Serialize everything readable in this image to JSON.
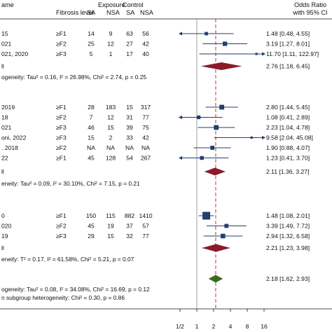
{
  "chart_data": {
    "type": "forest",
    "columns": {
      "study": "ame",
      "fibrosis": "Fibrosis level",
      "exposure": "Exposure",
      "control": "Control",
      "sa": "SA",
      "nsa": "NSA",
      "or_line1": "Odds Ratio",
      "or_line2": "with 95% CI"
    },
    "axis": {
      "scale": "log2",
      "xlim": [
        0.5,
        16
      ],
      "ticks": [
        0.5,
        1,
        2,
        4,
        8,
        16
      ],
      "tick_labels": [
        "1/2",
        "1",
        "2",
        "4",
        "8",
        "16"
      ],
      "null_value": 1,
      "overall_value": 2.18
    },
    "groups": [
      {
        "rows": [
          {
            "study": "15",
            "fib": "≥F1",
            "e_sa": "14",
            "e_nsa": "9",
            "c_sa": "63",
            "c_nsa": "56",
            "or": 1.48,
            "lo": 0.48,
            "hi": 4.55,
            "ci_text": "1.48 [0.48, 4.55]",
            "arrow_left": true,
            "arrow_right": false
          },
          {
            "study": "021",
            "fib": "≥F2",
            "e_sa": "25",
            "e_nsa": "12",
            "c_sa": "27",
            "c_nsa": "42",
            "or": 3.19,
            "lo": 1.27,
            "hi": 8.01,
            "ci_text": "3.19 [1.27, 8.01]",
            "arrow_left": false,
            "arrow_right": false
          },
          {
            "study": "021, 2020",
            "fib": "≥F3",
            "e_sa": "5",
            "e_nsa": "1",
            "c_sa": "17",
            "c_nsa": "40",
            "or": 11.7,
            "lo": 1.11,
            "hi": 122.97,
            "ci_text": "11.70 [1.11, 122.97]",
            "arrow_left": false,
            "arrow_right": true
          }
        ],
        "summary_label": "ll",
        "summary": {
          "or": 2.76,
          "lo": 1.18,
          "hi": 6.45,
          "ci_text": "2.76 [1.18, 6.45]"
        },
        "heterogeneity": "ogeneity: Tau² = 0.16, I² = 26.98%, Chi² = 2.74, p = 0.25"
      },
      {
        "rows": [
          {
            "study": "2019",
            "fib": "≥F1",
            "e_sa": "28",
            "e_nsa": "183",
            "c_sa": "15",
            "c_nsa": "317",
            "or": 2.8,
            "lo": 1.44,
            "hi": 5.45,
            "ci_text": "2.80 [1.44, 5.45]",
            "arrow_left": false,
            "arrow_right": false
          },
          {
            "study": "18",
            "fib": "≥F2",
            "e_sa": "7",
            "e_nsa": "12",
            "c_sa": "31",
            "c_nsa": "77",
            "or": 1.08,
            "lo": 0.41,
            "hi": 2.89,
            "ci_text": "1.08 [0.41, 2.89]",
            "arrow_left": true,
            "arrow_right": false
          },
          {
            "study": "021",
            "fib": "≥F3",
            "e_sa": "46",
            "e_nsa": "15",
            "c_sa": "39",
            "c_nsa": "75",
            "or": 2.23,
            "lo": 1.04,
            "hi": 4.78,
            "ci_text": "2.23 [1.04, 4.78]",
            "arrow_left": false,
            "arrow_right": false
          },
          {
            "study": "oni, 2022",
            "fib": "≥F3",
            "e_sa": "15",
            "e_nsa": "2",
            "c_sa": "33",
            "c_nsa": "42",
            "or": 9.58,
            "lo": 2.04,
            "hi": 45.08,
            "ci_text": "9.58 [2.04, 45.08]",
            "arrow_left": false,
            "arrow_right": true
          },
          {
            "study": ". 2018",
            "fib": "≥F2",
            "e_sa": "NA",
            "e_nsa": "NA",
            "c_sa": "NA",
            "c_nsa": "NA",
            "or": 1.9,
            "lo": 0.88,
            "hi": 4.07,
            "ci_text": "1.90 [0.88, 4.07]",
            "arrow_left": false,
            "arrow_right": false
          },
          {
            "study": "22",
            "fib": "≥F1",
            "e_sa": "45",
            "e_nsa": "128",
            "c_sa": "54",
            "c_nsa": "267",
            "or": 1.23,
            "lo": 0.41,
            "hi": 3.7,
            "ci_text": "1.23 [0.41, 3.70]",
            "arrow_left": true,
            "arrow_right": false
          }
        ],
        "summary_label": "ll",
        "summary": {
          "or": 2.11,
          "lo": 1.36,
          "hi": 3.27,
          "ci_text": "2.11 [1.36, 3.27]"
        },
        "heterogeneity": "eneity: Tau² = 0.09, I² = 30.10%, Chi² = 7.15, p = 0.21"
      },
      {
        "rows": [
          {
            "study": "0",
            "fib": "≥F1",
            "e_sa": "150",
            "e_nsa": "115",
            "c_sa": "882",
            "c_nsa": "1410",
            "or": 1.48,
            "lo": 1.08,
            "hi": 2.01,
            "ci_text": "1.48 [1.08, 2.01]",
            "arrow_left": false,
            "arrow_right": false
          },
          {
            "study": "020",
            "fib": "≥F2",
            "e_sa": "45",
            "e_nsa": "19",
            "c_sa": "37",
            "c_nsa": "57",
            "or": 3.39,
            "lo": 1.49,
            "hi": 7.72,
            "ci_text": "3.39 [1.49, 7.72]",
            "arrow_left": false,
            "arrow_right": false
          },
          {
            "study": "19",
            "fib": "≥F3",
            "e_sa": "29",
            "e_nsa": "15",
            "c_sa": "32",
            "c_nsa": "77",
            "or": 2.94,
            "lo": 1.32,
            "hi": 6.58,
            "ci_text": "2.94 [1.32, 6.58]",
            "arrow_left": false,
            "arrow_right": false
          }
        ],
        "summary_label": "ll",
        "summary": {
          "or": 2.21,
          "lo": 1.23,
          "hi": 3.98,
          "ci_text": "2.21 [1.23, 3.98]"
        },
        "heterogeneity": "eneity: T² = 0.17, I² = 61.58%, Chi² = 5.21, p = 0.07"
      }
    ],
    "overall": {
      "or": 2.18,
      "lo": 1.62,
      "hi": 2.93,
      "ci_text": "2.18 [1.62, 2.93]",
      "heterogeneity": "ogeneity: Tau² = 0.08, I² = 34.08%, Chi² = 16.69, p = 0.12",
      "subgroup_test": "n subgroup heterogeneity: Chi² = 0.30, p = 0.86"
    },
    "colors": {
      "study_marker": "#1f3f6e",
      "subgroup_diamond": "#8b1a2b",
      "overall_diamond": "#3e6b1f",
      "ref_line": "#888888",
      "overall_line": "#c0392b",
      "ci_line": "#1f3f6e"
    }
  }
}
